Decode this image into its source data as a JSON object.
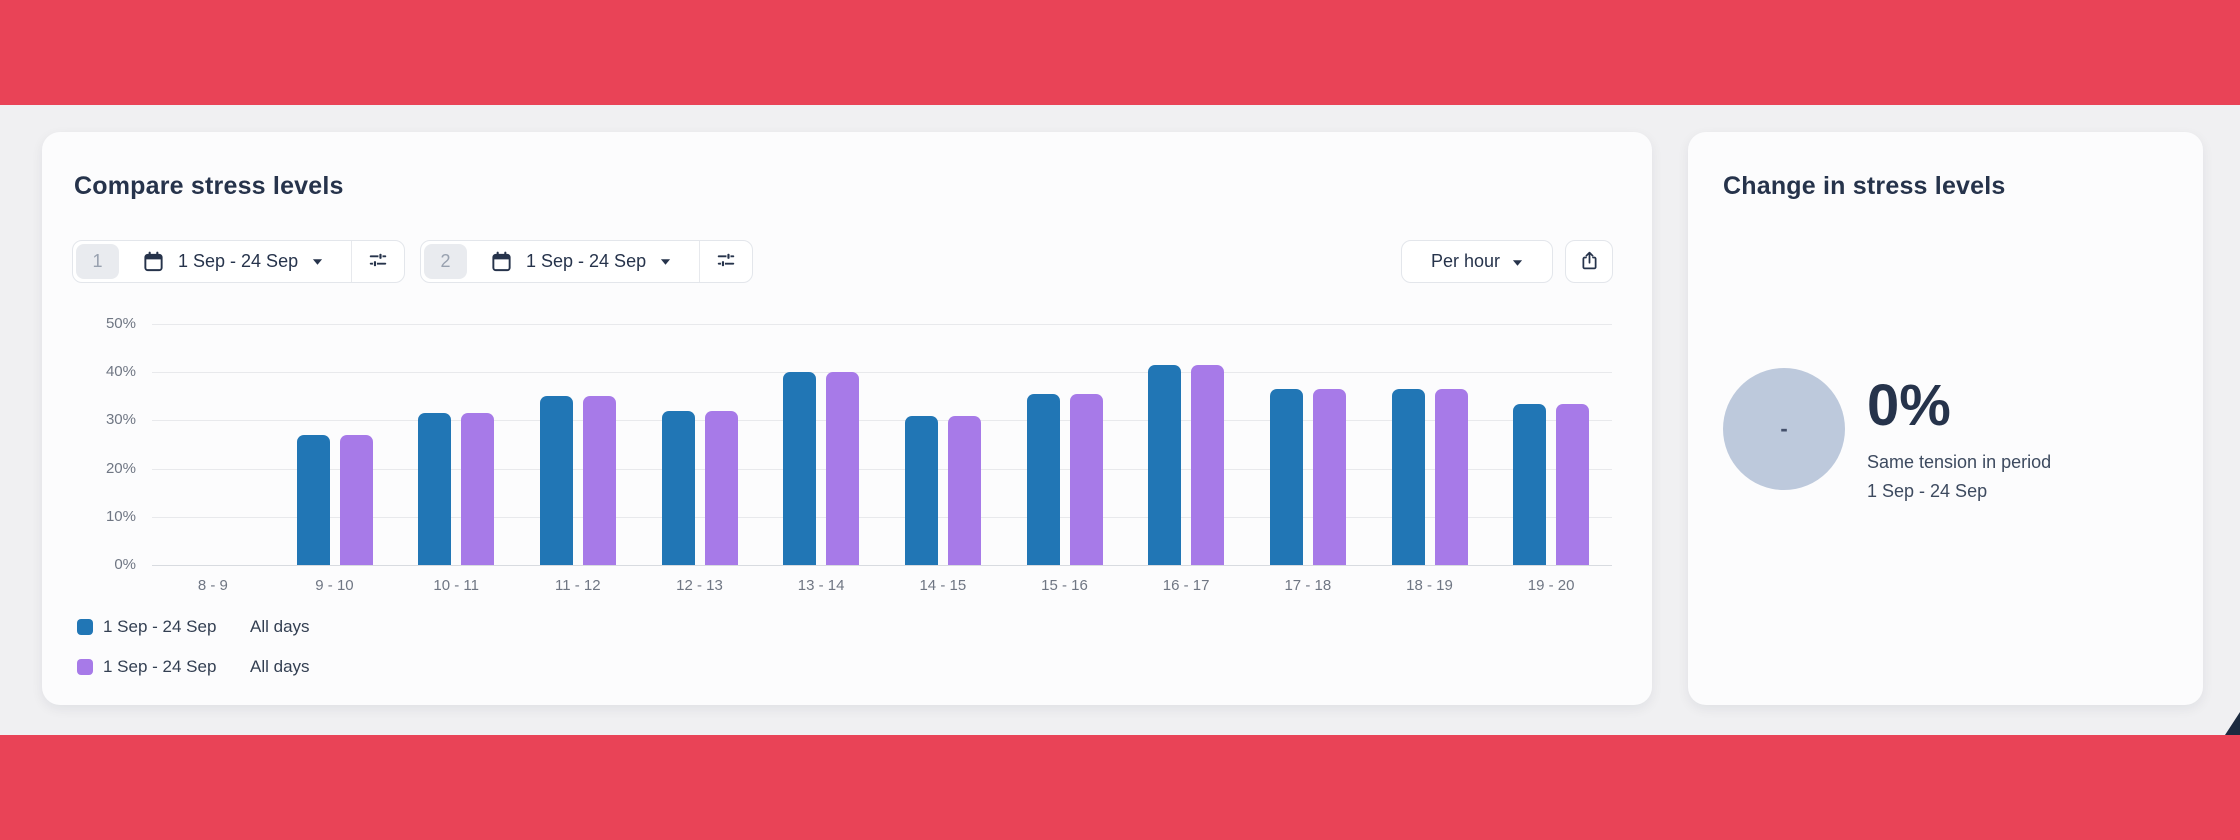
{
  "theme": {
    "accent": "#E94357",
    "series1_color": "#2176B5",
    "series2_color": "#A77AE8",
    "circle_color": "#BDC9DC"
  },
  "compare_card": {
    "title": "Compare stress levels",
    "selectors": [
      {
        "index": "1",
        "range": "1 Sep - 24 Sep"
      },
      {
        "index": "2",
        "range": "1 Sep - 24 Sep"
      }
    ],
    "granularity": {
      "label": "Per hour"
    },
    "legend": [
      {
        "color": "#2176B5",
        "range": "1 Sep - 24 Sep",
        "days": "All days"
      },
      {
        "color": "#A77AE8",
        "range": "1 Sep - 24 Sep",
        "days": "All days"
      }
    ]
  },
  "chart_data": {
    "type": "bar",
    "title": "Compare stress levels",
    "categories": [
      "8 - 9",
      "9 - 10",
      "10 - 11",
      "11 - 12",
      "12 - 13",
      "13 - 14",
      "14 - 15",
      "15 - 16",
      "16 - 17",
      "17 - 18",
      "18 - 19",
      "19 - 20"
    ],
    "series": [
      {
        "name": "1 Sep - 24 Sep, All days",
        "color": "#2176B5",
        "values": [
          0,
          27,
          31.5,
          35,
          32,
          40,
          31,
          35.5,
          41.5,
          36.5,
          36.5,
          33.5
        ]
      },
      {
        "name": "1 Sep - 24 Sep, All days",
        "color": "#A77AE8",
        "values": [
          0,
          27,
          31.5,
          35,
          32,
          40,
          31,
          35.5,
          41.5,
          36.5,
          36.5,
          33.5
        ]
      }
    ],
    "xlabel": "",
    "ylabel": "",
    "ylim": [
      0,
      50
    ],
    "yticks": [
      0,
      10,
      20,
      30,
      40,
      50
    ],
    "ytick_suffix": "%",
    "grid": true,
    "legend_position": "bottom-left"
  },
  "change_card": {
    "title": "Change in stress levels",
    "value": "0%",
    "circle_label": "-",
    "description_line1": "Same tension in period",
    "description_line2": "1 Sep - 24 Sep"
  }
}
